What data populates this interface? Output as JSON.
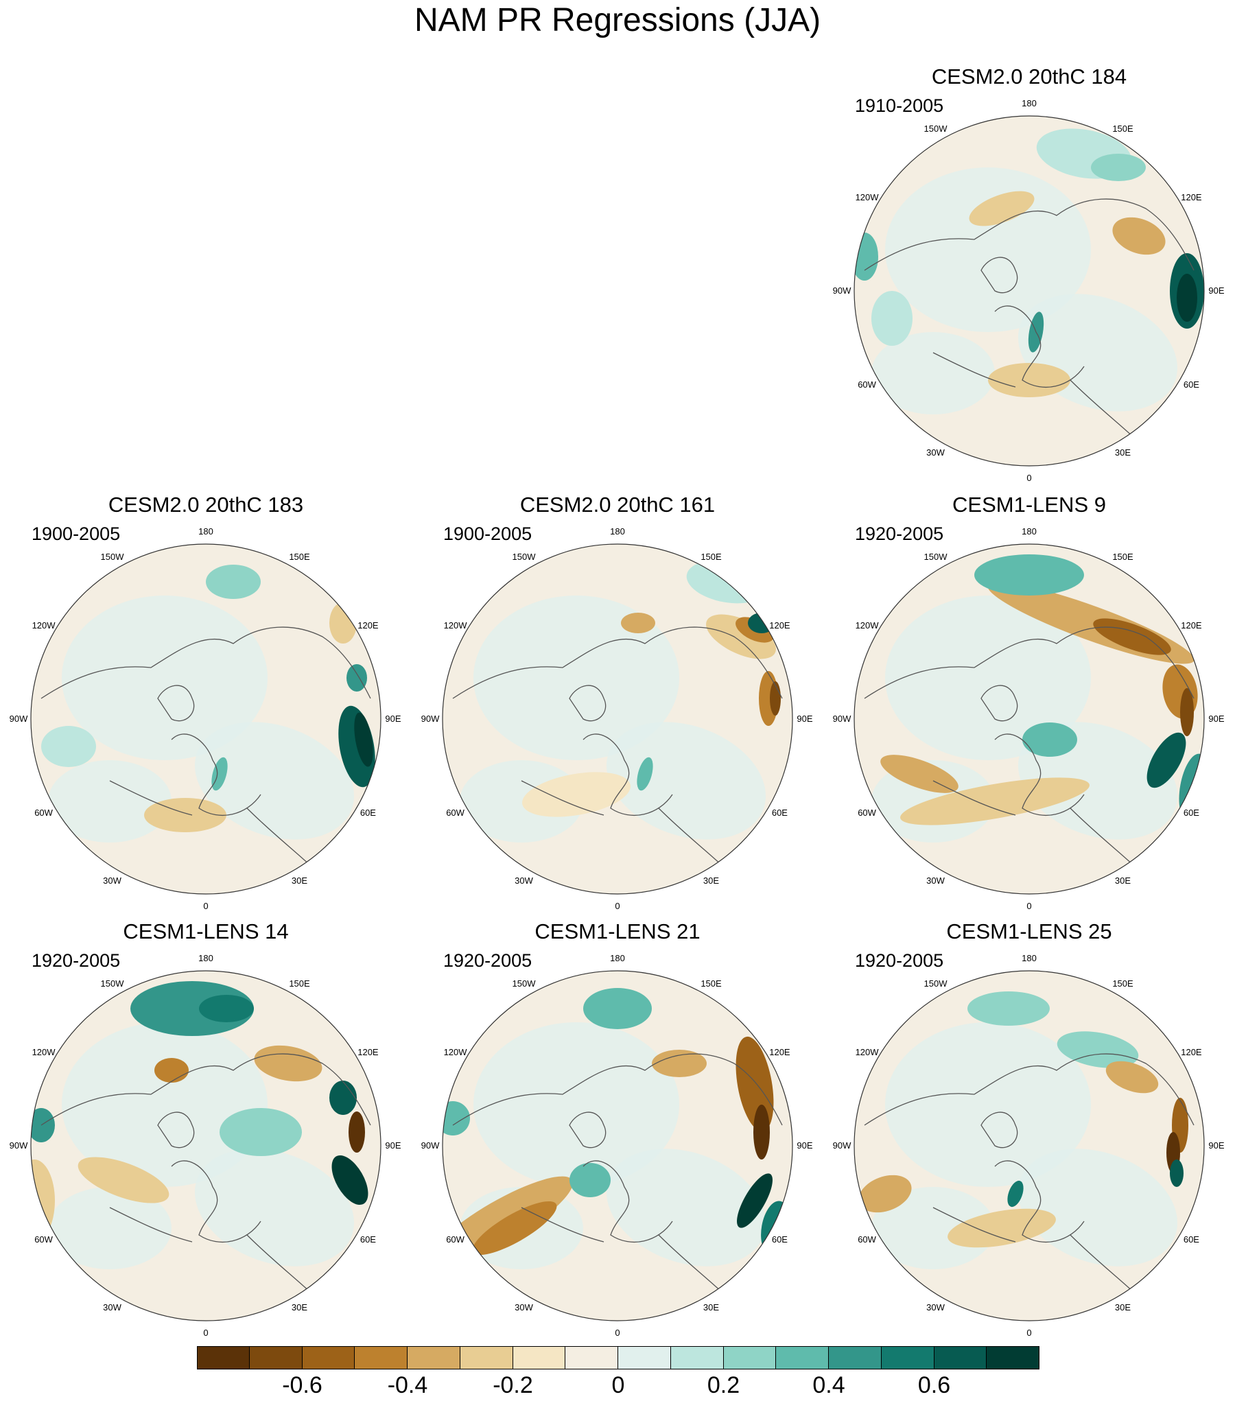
{
  "title": "NAM PR Regressions (JJA)",
  "panels": [
    {
      "id": "p1",
      "title": "CESM2.0 20thC 184",
      "period": "1910-2005",
      "row": 0,
      "col": 2
    },
    {
      "id": "p2",
      "title": "CESM2.0 20thC 183",
      "period": "1900-2005",
      "row": 1,
      "col": 0
    },
    {
      "id": "p3",
      "title": "CESM2.0 20thC 161",
      "period": "1900-2005",
      "row": 1,
      "col": 1
    },
    {
      "id": "p4",
      "title": "CESM1-LENS 9",
      "period": "1920-2005",
      "row": 1,
      "col": 2
    },
    {
      "id": "p5",
      "title": "CESM1-LENS 14",
      "period": "1920-2005",
      "row": 2,
      "col": 0
    },
    {
      "id": "p6",
      "title": "CESM1-LENS 21",
      "period": "1920-2005",
      "row": 2,
      "col": 1
    },
    {
      "id": "p7",
      "title": "CESM1-LENS 25",
      "period": "1920-2005",
      "row": 2,
      "col": 2
    }
  ],
  "longitude_labels": [
    "180",
    "150E",
    "120E",
    "90E",
    "60E",
    "30E",
    "0",
    "30W",
    "60W",
    "90W",
    "120W",
    "150W"
  ],
  "colorbar": {
    "colors": [
      "#5b3208",
      "#7d4a0e",
      "#9d6218",
      "#bd812e",
      "#d6aa62",
      "#e8cd93",
      "#f5e6c4",
      "#f4eee2",
      "#e1f0ed",
      "#bde6de",
      "#8fd4c6",
      "#5fbbac",
      "#33968a",
      "#137a6e",
      "#075b51",
      "#013c33"
    ],
    "tick_labels": [
      "-0.6",
      "-0.4",
      "-0.2",
      "0",
      "0.2",
      "0.4",
      "0.6"
    ],
    "tick_values": [
      -0.6,
      -0.4,
      -0.2,
      0,
      0.2,
      0.4,
      0.6
    ],
    "levels": [
      -0.7,
      -0.6,
      -0.5,
      -0.4,
      -0.3,
      -0.2,
      -0.1,
      0,
      0.1,
      0.2,
      0.3,
      0.4,
      0.5,
      0.6,
      0.7
    ]
  }
}
